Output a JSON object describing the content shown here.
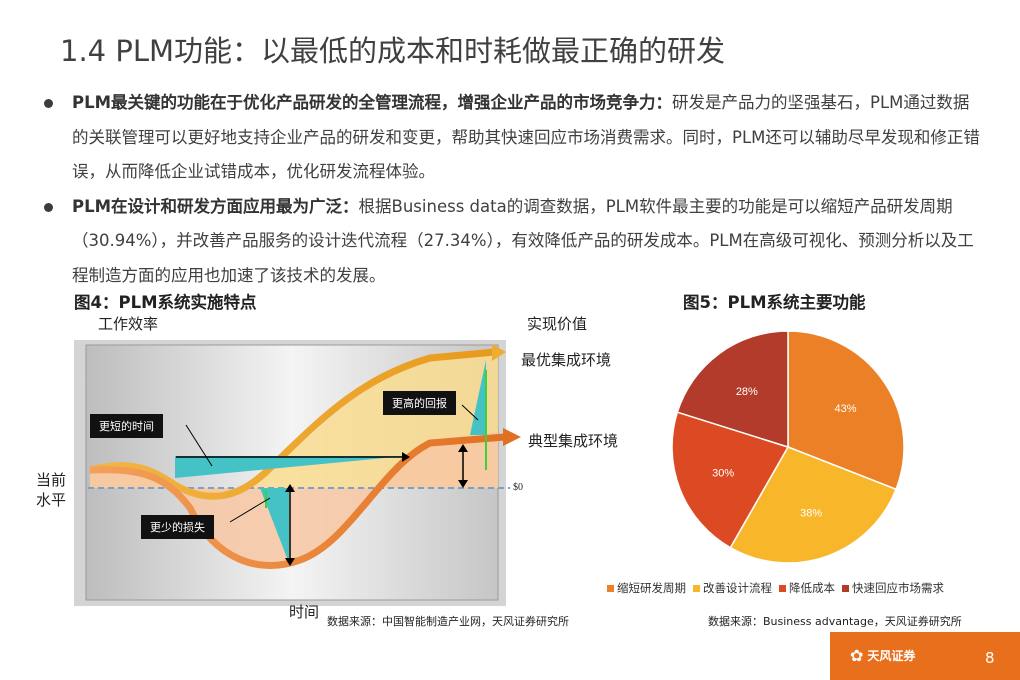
{
  "title": "1.4 PLM功能：以最低的成本和时耗做最正确的研发",
  "bullets": [
    {
      "bold": "PLM最关键的功能在于优化产品研发的全管理流程，增强企业产品的市场竞争力：",
      "text": "研发是产品力的坚强基石，PLM通过数据的关联管理可以更好地支持企业产品的研发和变更，帮助其快速回应市场消费需求。同时，PLM还可以辅助尽早发现和修正错误，从而降低企业试错成本，优化研发流程体验。"
    },
    {
      "bold": "PLM在设计和研发方面应用最为广泛：",
      "text": "根据Business data的调查数据，PLM软件最主要的功能是可以缩短产品研发周期（30.94%），并改善产品服务的设计迭代流程（27.34%），有效降低产品的研发成本。PLM在高级可视化、预测分析以及工程制造方面的应用也加速了该技术的发展。"
    }
  ],
  "fig4": {
    "title": "图4：PLM系统实施特点",
    "y_label": "工作效率",
    "right_label": "实现价值",
    "x_label": "时间",
    "current_level": "当前水平",
    "best_env": "最优集成环境",
    "typical_env": "典型集成环境",
    "zero_mark": "$0",
    "callout_shorter": "更短的时间",
    "callout_higher": "更高的回报",
    "callout_less": "更少的损失",
    "source": "数据来源：中国智能制造产业网，天风证券研究所"
  },
  "fig5": {
    "title": "图5：PLM系统主要功能",
    "source": "数据来源：Business advantage，天风证券研究所"
  },
  "chart_data": {
    "type": "pie",
    "title": "图5：PLM系统主要功能",
    "slices": [
      {
        "label": "缩短研发周期",
        "value": 43,
        "display": "43%",
        "color": "#ec8026"
      },
      {
        "label": "改善设计流程",
        "value": 38,
        "display": "38%",
        "color": "#f8b62a"
      },
      {
        "label": "降低成本",
        "value": 30,
        "display": "30%",
        "color": "#dc4a24"
      },
      {
        "label": "快速回应市场需求",
        "value": 28,
        "display": "28%",
        "color": "#b23b2b"
      }
    ],
    "legend_position": "bottom"
  },
  "footer": {
    "logo_text": "天风证券",
    "page": "8",
    "brand_color": "#e8701d"
  }
}
